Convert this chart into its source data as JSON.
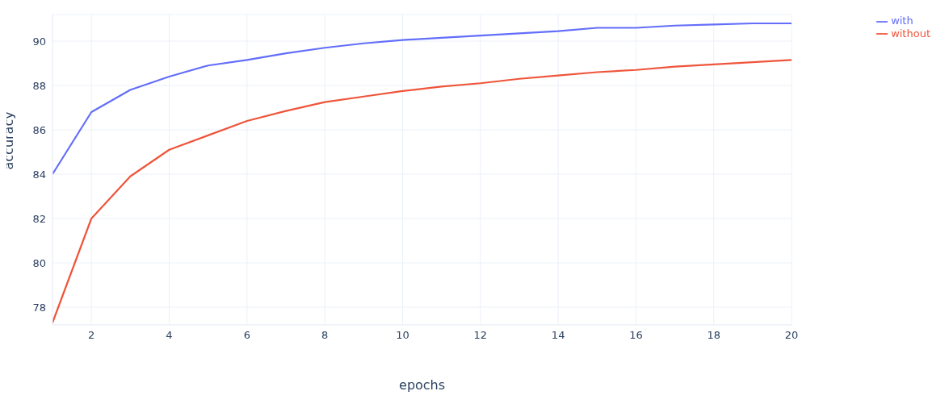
{
  "chart_data": {
    "type": "line",
    "xlabel": "epochs",
    "ylabel": "accuracy",
    "x": [
      1,
      2,
      3,
      4,
      5,
      6,
      7,
      8,
      9,
      10,
      11,
      12,
      13,
      14,
      15,
      16,
      17,
      18,
      19,
      20
    ],
    "series": [
      {
        "name": "with",
        "color": "#636efa",
        "values": [
          84.0,
          86.8,
          87.8,
          88.4,
          88.9,
          89.15,
          89.45,
          89.7,
          89.9,
          90.05,
          90.15,
          90.25,
          90.35,
          90.45,
          90.6,
          90.6,
          90.7,
          90.75,
          90.8,
          90.8
        ]
      },
      {
        "name": "without",
        "color": "#ef553b",
        "values": [
          77.3,
          82.0,
          83.9,
          85.1,
          85.75,
          86.4,
          86.85,
          87.25,
          87.5,
          87.75,
          87.95,
          88.1,
          88.3,
          88.45,
          88.6,
          88.7,
          88.85,
          88.95,
          89.05,
          89.15
        ]
      }
    ],
    "xlim": [
      1,
      20
    ],
    "xticks": [
      2,
      4,
      6,
      8,
      10,
      12,
      14,
      16,
      18,
      20
    ],
    "ylim": [
      77.2,
      91.2
    ],
    "yticks": [
      78,
      80,
      82,
      84,
      86,
      88,
      90
    ],
    "grid": true,
    "legend": "top right",
    "marker": "none",
    "line_style": "solid"
  }
}
